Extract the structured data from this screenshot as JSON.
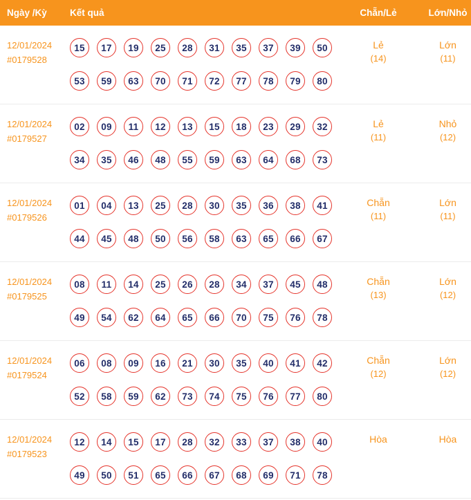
{
  "header": {
    "date_label": "Ngày /Kỳ",
    "result_label": "Kết quả",
    "parity_label": "Chẵn/Lẻ",
    "size_label": "Lớn/Nhỏ"
  },
  "colors": {
    "header_bg": "#F7941D",
    "orange_text": "#F7941D",
    "ball_border": "#E5342B",
    "ball_number": "#212C68",
    "divider": "#EBEBEB",
    "page_bg": "#FFFFFF"
  },
  "rows": [
    {
      "date": "12/01/2024",
      "draw_id": "#0179528",
      "numbers_line1": [
        "15",
        "17",
        "19",
        "25",
        "28",
        "31",
        "35",
        "37",
        "39",
        "50"
      ],
      "numbers_line2": [
        "53",
        "59",
        "63",
        "70",
        "71",
        "72",
        "77",
        "78",
        "79",
        "80"
      ],
      "parity": "Lẻ",
      "parity_count": "(14)",
      "size": "Lớn",
      "size_count": "(11)"
    },
    {
      "date": "12/01/2024",
      "draw_id": "#0179527",
      "numbers_line1": [
        "02",
        "09",
        "11",
        "12",
        "13",
        "15",
        "18",
        "23",
        "29",
        "32"
      ],
      "numbers_line2": [
        "34",
        "35",
        "46",
        "48",
        "55",
        "59",
        "63",
        "64",
        "68",
        "73"
      ],
      "parity": "Lẻ",
      "parity_count": "(11)",
      "size": "Nhỏ",
      "size_count": "(12)"
    },
    {
      "date": "12/01/2024",
      "draw_id": "#0179526",
      "numbers_line1": [
        "01",
        "04",
        "13",
        "25",
        "28",
        "30",
        "35",
        "36",
        "38",
        "41"
      ],
      "numbers_line2": [
        "44",
        "45",
        "48",
        "50",
        "56",
        "58",
        "63",
        "65",
        "66",
        "67"
      ],
      "parity": "Chẵn",
      "parity_count": "(11)",
      "size": "Lớn",
      "size_count": "(11)"
    },
    {
      "date": "12/01/2024",
      "draw_id": "#0179525",
      "numbers_line1": [
        "08",
        "11",
        "14",
        "25",
        "26",
        "28",
        "34",
        "37",
        "45",
        "48"
      ],
      "numbers_line2": [
        "49",
        "54",
        "62",
        "64",
        "65",
        "66",
        "70",
        "75",
        "76",
        "78"
      ],
      "parity": "Chẵn",
      "parity_count": "(13)",
      "size": "Lớn",
      "size_count": "(12)"
    },
    {
      "date": "12/01/2024",
      "draw_id": "#0179524",
      "numbers_line1": [
        "06",
        "08",
        "09",
        "16",
        "21",
        "30",
        "35",
        "40",
        "41",
        "42"
      ],
      "numbers_line2": [
        "52",
        "58",
        "59",
        "62",
        "73",
        "74",
        "75",
        "76",
        "77",
        "80"
      ],
      "parity": "Chẵn",
      "parity_count": "(12)",
      "size": "Lớn",
      "size_count": "(12)"
    },
    {
      "date": "12/01/2024",
      "draw_id": "#0179523",
      "numbers_line1": [
        "12",
        "14",
        "15",
        "17",
        "28",
        "32",
        "33",
        "37",
        "38",
        "40"
      ],
      "numbers_line2": [
        "49",
        "50",
        "51",
        "65",
        "66",
        "67",
        "68",
        "69",
        "71",
        "78"
      ],
      "parity": "Hòa",
      "parity_count": "",
      "size": "Hòa",
      "size_count": ""
    }
  ]
}
